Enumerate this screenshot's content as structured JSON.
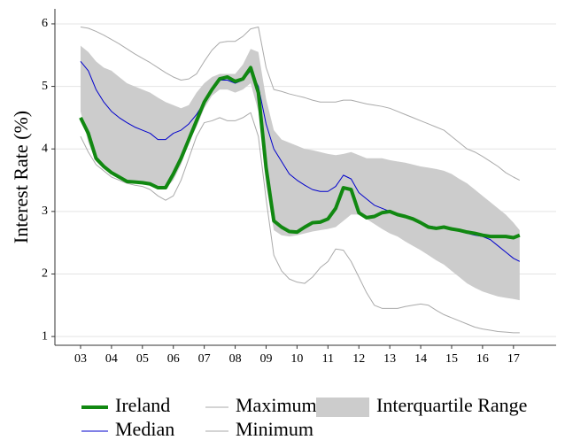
{
  "chart_data": {
    "type": "line",
    "ylabel": "Interest Rate (%)",
    "xlim": [
      2.17,
      18.38
    ],
    "ylim": [
      0.86,
      6.24
    ],
    "xticks": [
      {
        "value": 3,
        "label": "03"
      },
      {
        "value": 4,
        "label": "04"
      },
      {
        "value": 5,
        "label": "05"
      },
      {
        "value": 6,
        "label": "06"
      },
      {
        "value": 7,
        "label": "07"
      },
      {
        "value": 8,
        "label": "08"
      },
      {
        "value": 9,
        "label": "09"
      },
      10,
      11,
      12,
      13,
      14,
      15,
      16,
      17
    ],
    "yticks": [
      1,
      2,
      3,
      4,
      5,
      6
    ],
    "grid": true,
    "x": [
      3.0,
      3.25,
      3.5,
      3.75,
      4.0,
      4.25,
      4.5,
      4.75,
      5.0,
      5.25,
      5.5,
      5.75,
      6.0,
      6.25,
      6.5,
      6.75,
      7.0,
      7.25,
      7.5,
      7.75,
      8.0,
      8.25,
      8.5,
      8.75,
      9.0,
      9.25,
      9.5,
      9.75,
      10.0,
      10.25,
      10.5,
      10.75,
      11.0,
      11.25,
      11.5,
      11.75,
      12.0,
      12.25,
      12.5,
      12.75,
      13.0,
      13.25,
      13.5,
      13.75,
      14.0,
      14.25,
      14.5,
      14.75,
      15.0,
      15.25,
      15.5,
      15.75,
      16.0,
      16.25,
      16.5,
      16.75,
      17.0,
      17.2
    ],
    "band": {
      "name": "Interquartile Range",
      "color": "#cccccc",
      "upper": [
        5.65,
        5.55,
        5.4,
        5.3,
        5.25,
        5.15,
        5.05,
        5.0,
        4.95,
        4.9,
        4.82,
        4.75,
        4.7,
        4.65,
        4.7,
        4.9,
        5.05,
        5.15,
        5.2,
        5.2,
        5.2,
        5.35,
        5.6,
        5.55,
        4.8,
        4.3,
        4.15,
        4.1,
        4.05,
        4.0,
        3.98,
        3.95,
        3.92,
        3.9,
        3.92,
        3.95,
        3.9,
        3.85,
        3.85,
        3.85,
        3.82,
        3.8,
        3.78,
        3.75,
        3.72,
        3.7,
        3.68,
        3.65,
        3.6,
        3.52,
        3.45,
        3.35,
        3.25,
        3.15,
        3.05,
        2.95,
        2.82,
        2.7
      ],
      "lower": [
        4.6,
        4.1,
        3.8,
        3.68,
        3.6,
        3.52,
        3.47,
        3.45,
        3.44,
        3.42,
        3.38,
        3.36,
        3.5,
        3.75,
        4.1,
        4.35,
        4.65,
        4.85,
        4.95,
        4.95,
        4.9,
        4.95,
        5.05,
        4.6,
        3.4,
        2.7,
        2.62,
        2.6,
        2.62,
        2.65,
        2.68,
        2.7,
        2.72,
        2.75,
        2.85,
        2.95,
        2.95,
        2.88,
        2.8,
        2.72,
        2.65,
        2.6,
        2.52,
        2.45,
        2.38,
        2.3,
        2.22,
        2.15,
        2.05,
        1.95,
        1.85,
        1.78,
        1.72,
        1.68,
        1.64,
        1.62,
        1.6,
        1.58
      ]
    },
    "series": [
      {
        "name": "Ireland",
        "color": "#118811",
        "width": 4,
        "values": [
          4.5,
          4.25,
          3.85,
          3.72,
          3.62,
          3.55,
          3.48,
          3.47,
          3.46,
          3.44,
          3.38,
          3.38,
          3.6,
          3.85,
          4.15,
          4.45,
          4.75,
          4.95,
          5.12,
          5.15,
          5.08,
          5.12,
          5.3,
          4.9,
          3.7,
          2.85,
          2.75,
          2.68,
          2.67,
          2.75,
          2.82,
          2.83,
          2.88,
          3.05,
          3.38,
          3.35,
          2.98,
          2.9,
          2.92,
          2.98,
          3.0,
          2.95,
          2.92,
          2.88,
          2.82,
          2.75,
          2.73,
          2.75,
          2.72,
          2.7,
          2.67,
          2.65,
          2.62,
          2.6,
          2.6,
          2.6,
          2.58,
          2.62
        ]
      },
      {
        "name": "Median",
        "color": "#0000cc",
        "width": 1,
        "values": [
          5.4,
          5.25,
          4.95,
          4.75,
          4.6,
          4.5,
          4.42,
          4.35,
          4.3,
          4.25,
          4.15,
          4.15,
          4.25,
          4.3,
          4.4,
          4.55,
          4.75,
          4.95,
          5.1,
          5.1,
          5.05,
          5.1,
          5.25,
          5.0,
          4.4,
          4.0,
          3.8,
          3.6,
          3.5,
          3.42,
          3.35,
          3.32,
          3.32,
          3.4,
          3.58,
          3.52,
          3.3,
          3.2,
          3.1,
          3.05,
          3.0,
          2.95,
          2.92,
          2.88,
          2.83,
          2.77,
          2.75,
          2.74,
          2.72,
          2.68,
          2.65,
          2.62,
          2.6,
          2.55,
          2.45,
          2.35,
          2.25,
          2.2
        ]
      },
      {
        "name": "Maximum",
        "color": "#aaaaaa",
        "width": 1,
        "values": [
          5.95,
          5.93,
          5.88,
          5.82,
          5.75,
          5.68,
          5.6,
          5.52,
          5.45,
          5.38,
          5.3,
          5.22,
          5.15,
          5.1,
          5.12,
          5.2,
          5.4,
          5.58,
          5.7,
          5.72,
          5.72,
          5.8,
          5.92,
          5.95,
          5.3,
          4.95,
          4.92,
          4.88,
          4.85,
          4.82,
          4.78,
          4.75,
          4.75,
          4.75,
          4.78,
          4.78,
          4.75,
          4.72,
          4.7,
          4.68,
          4.65,
          4.6,
          4.55,
          4.5,
          4.45,
          4.4,
          4.35,
          4.3,
          4.2,
          4.1,
          4.0,
          3.95,
          3.88,
          3.8,
          3.72,
          3.62,
          3.55,
          3.5
        ]
      },
      {
        "name": "Minimum",
        "color": "#aaaaaa",
        "width": 1,
        "values": [
          4.2,
          3.95,
          3.75,
          3.65,
          3.55,
          3.5,
          3.45,
          3.42,
          3.4,
          3.35,
          3.25,
          3.18,
          3.25,
          3.5,
          3.85,
          4.2,
          4.42,
          4.45,
          4.5,
          4.45,
          4.45,
          4.5,
          4.58,
          4.2,
          3.2,
          2.3,
          2.05,
          1.92,
          1.87,
          1.85,
          1.95,
          2.1,
          2.2,
          2.4,
          2.38,
          2.2,
          1.95,
          1.7,
          1.5,
          1.45,
          1.45,
          1.45,
          1.48,
          1.5,
          1.52,
          1.5,
          1.42,
          1.35,
          1.3,
          1.25,
          1.2,
          1.15,
          1.12,
          1.1,
          1.08,
          1.07,
          1.06,
          1.06
        ]
      }
    ]
  }
}
